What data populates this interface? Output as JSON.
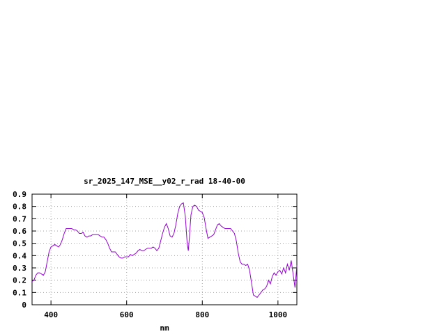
{
  "chart_data": {
    "type": "line",
    "title": "sr_2025_147_MSE__y02_r_rad 18-40-00",
    "xlabel": "nm",
    "ylabel": "",
    "xlim": [
      350,
      1050
    ],
    "ylim": [
      0,
      0.9
    ],
    "xticks": [
      400,
      600,
      800,
      1000
    ],
    "xtick_labels": [
      "400",
      "600",
      "800",
      "1000"
    ],
    "yticks": [
      0,
      0.1,
      0.2,
      0.3,
      0.4,
      0.5,
      0.6,
      0.7,
      0.8,
      0.9
    ],
    "ytick_labels": [
      "0",
      "0.1",
      "0.2",
      "0.3",
      "0.4",
      "0.5",
      "0.6",
      "0.7",
      "0.8",
      "0.9"
    ],
    "grid": true,
    "legend": "none",
    "series": [
      {
        "color": "#9400d3",
        "x": [
          350,
          355,
          360,
          365,
          370,
          375,
          380,
          385,
          390,
          395,
          400,
          405,
          410,
          415,
          420,
          425,
          430,
          435,
          440,
          445,
          450,
          455,
          460,
          465,
          470,
          475,
          480,
          485,
          490,
          495,
          500,
          505,
          510,
          515,
          520,
          525,
          530,
          535,
          540,
          545,
          550,
          555,
          560,
          565,
          570,
          575,
          580,
          585,
          590,
          595,
          600,
          605,
          610,
          615,
          620,
          625,
          630,
          635,
          640,
          645,
          650,
          655,
          660,
          665,
          670,
          675,
          680,
          685,
          690,
          695,
          700,
          705,
          710,
          715,
          720,
          725,
          730,
          735,
          740,
          745,
          750,
          755,
          760,
          763,
          766,
          770,
          775,
          780,
          785,
          790,
          795,
          800,
          805,
          810,
          815,
          820,
          825,
          830,
          835,
          840,
          845,
          850,
          855,
          860,
          865,
          870,
          875,
          880,
          885,
          890,
          895,
          900,
          905,
          910,
          915,
          920,
          925,
          930,
          935,
          940,
          945,
          950,
          955,
          960,
          965,
          970,
          975,
          980,
          985,
          990,
          995,
          1000,
          1005,
          1010,
          1015,
          1020,
          1025,
          1030,
          1035,
          1040,
          1045,
          1050
        ],
        "y": [
          0.19,
          0.2,
          0.24,
          0.26,
          0.26,
          0.25,
          0.24,
          0.27,
          0.35,
          0.43,
          0.47,
          0.48,
          0.49,
          0.48,
          0.47,
          0.49,
          0.53,
          0.58,
          0.62,
          0.62,
          0.62,
          0.62,
          0.61,
          0.61,
          0.6,
          0.58,
          0.58,
          0.59,
          0.56,
          0.55,
          0.56,
          0.56,
          0.57,
          0.57,
          0.57,
          0.57,
          0.56,
          0.55,
          0.55,
          0.53,
          0.5,
          0.46,
          0.43,
          0.43,
          0.43,
          0.41,
          0.39,
          0.38,
          0.38,
          0.39,
          0.39,
          0.39,
          0.41,
          0.4,
          0.41,
          0.42,
          0.44,
          0.45,
          0.44,
          0.44,
          0.45,
          0.46,
          0.46,
          0.46,
          0.47,
          0.46,
          0.44,
          0.46,
          0.52,
          0.58,
          0.63,
          0.66,
          0.62,
          0.56,
          0.55,
          0.58,
          0.65,
          0.74,
          0.8,
          0.82,
          0.83,
          0.72,
          0.5,
          0.44,
          0.55,
          0.73,
          0.8,
          0.81,
          0.8,
          0.77,
          0.76,
          0.75,
          0.71,
          0.62,
          0.54,
          0.55,
          0.56,
          0.57,
          0.61,
          0.65,
          0.66,
          0.64,
          0.63,
          0.62,
          0.62,
          0.62,
          0.62,
          0.6,
          0.58,
          0.52,
          0.42,
          0.35,
          0.33,
          0.33,
          0.32,
          0.33,
          0.28,
          0.18,
          0.08,
          0.07,
          0.06,
          0.08,
          0.1,
          0.12,
          0.13,
          0.15,
          0.2,
          0.17,
          0.23,
          0.26,
          0.24,
          0.27,
          0.28,
          0.25,
          0.3,
          0.26,
          0.33,
          0.28,
          0.36,
          0.25,
          0.14,
          0.32
        ]
      }
    ]
  }
}
